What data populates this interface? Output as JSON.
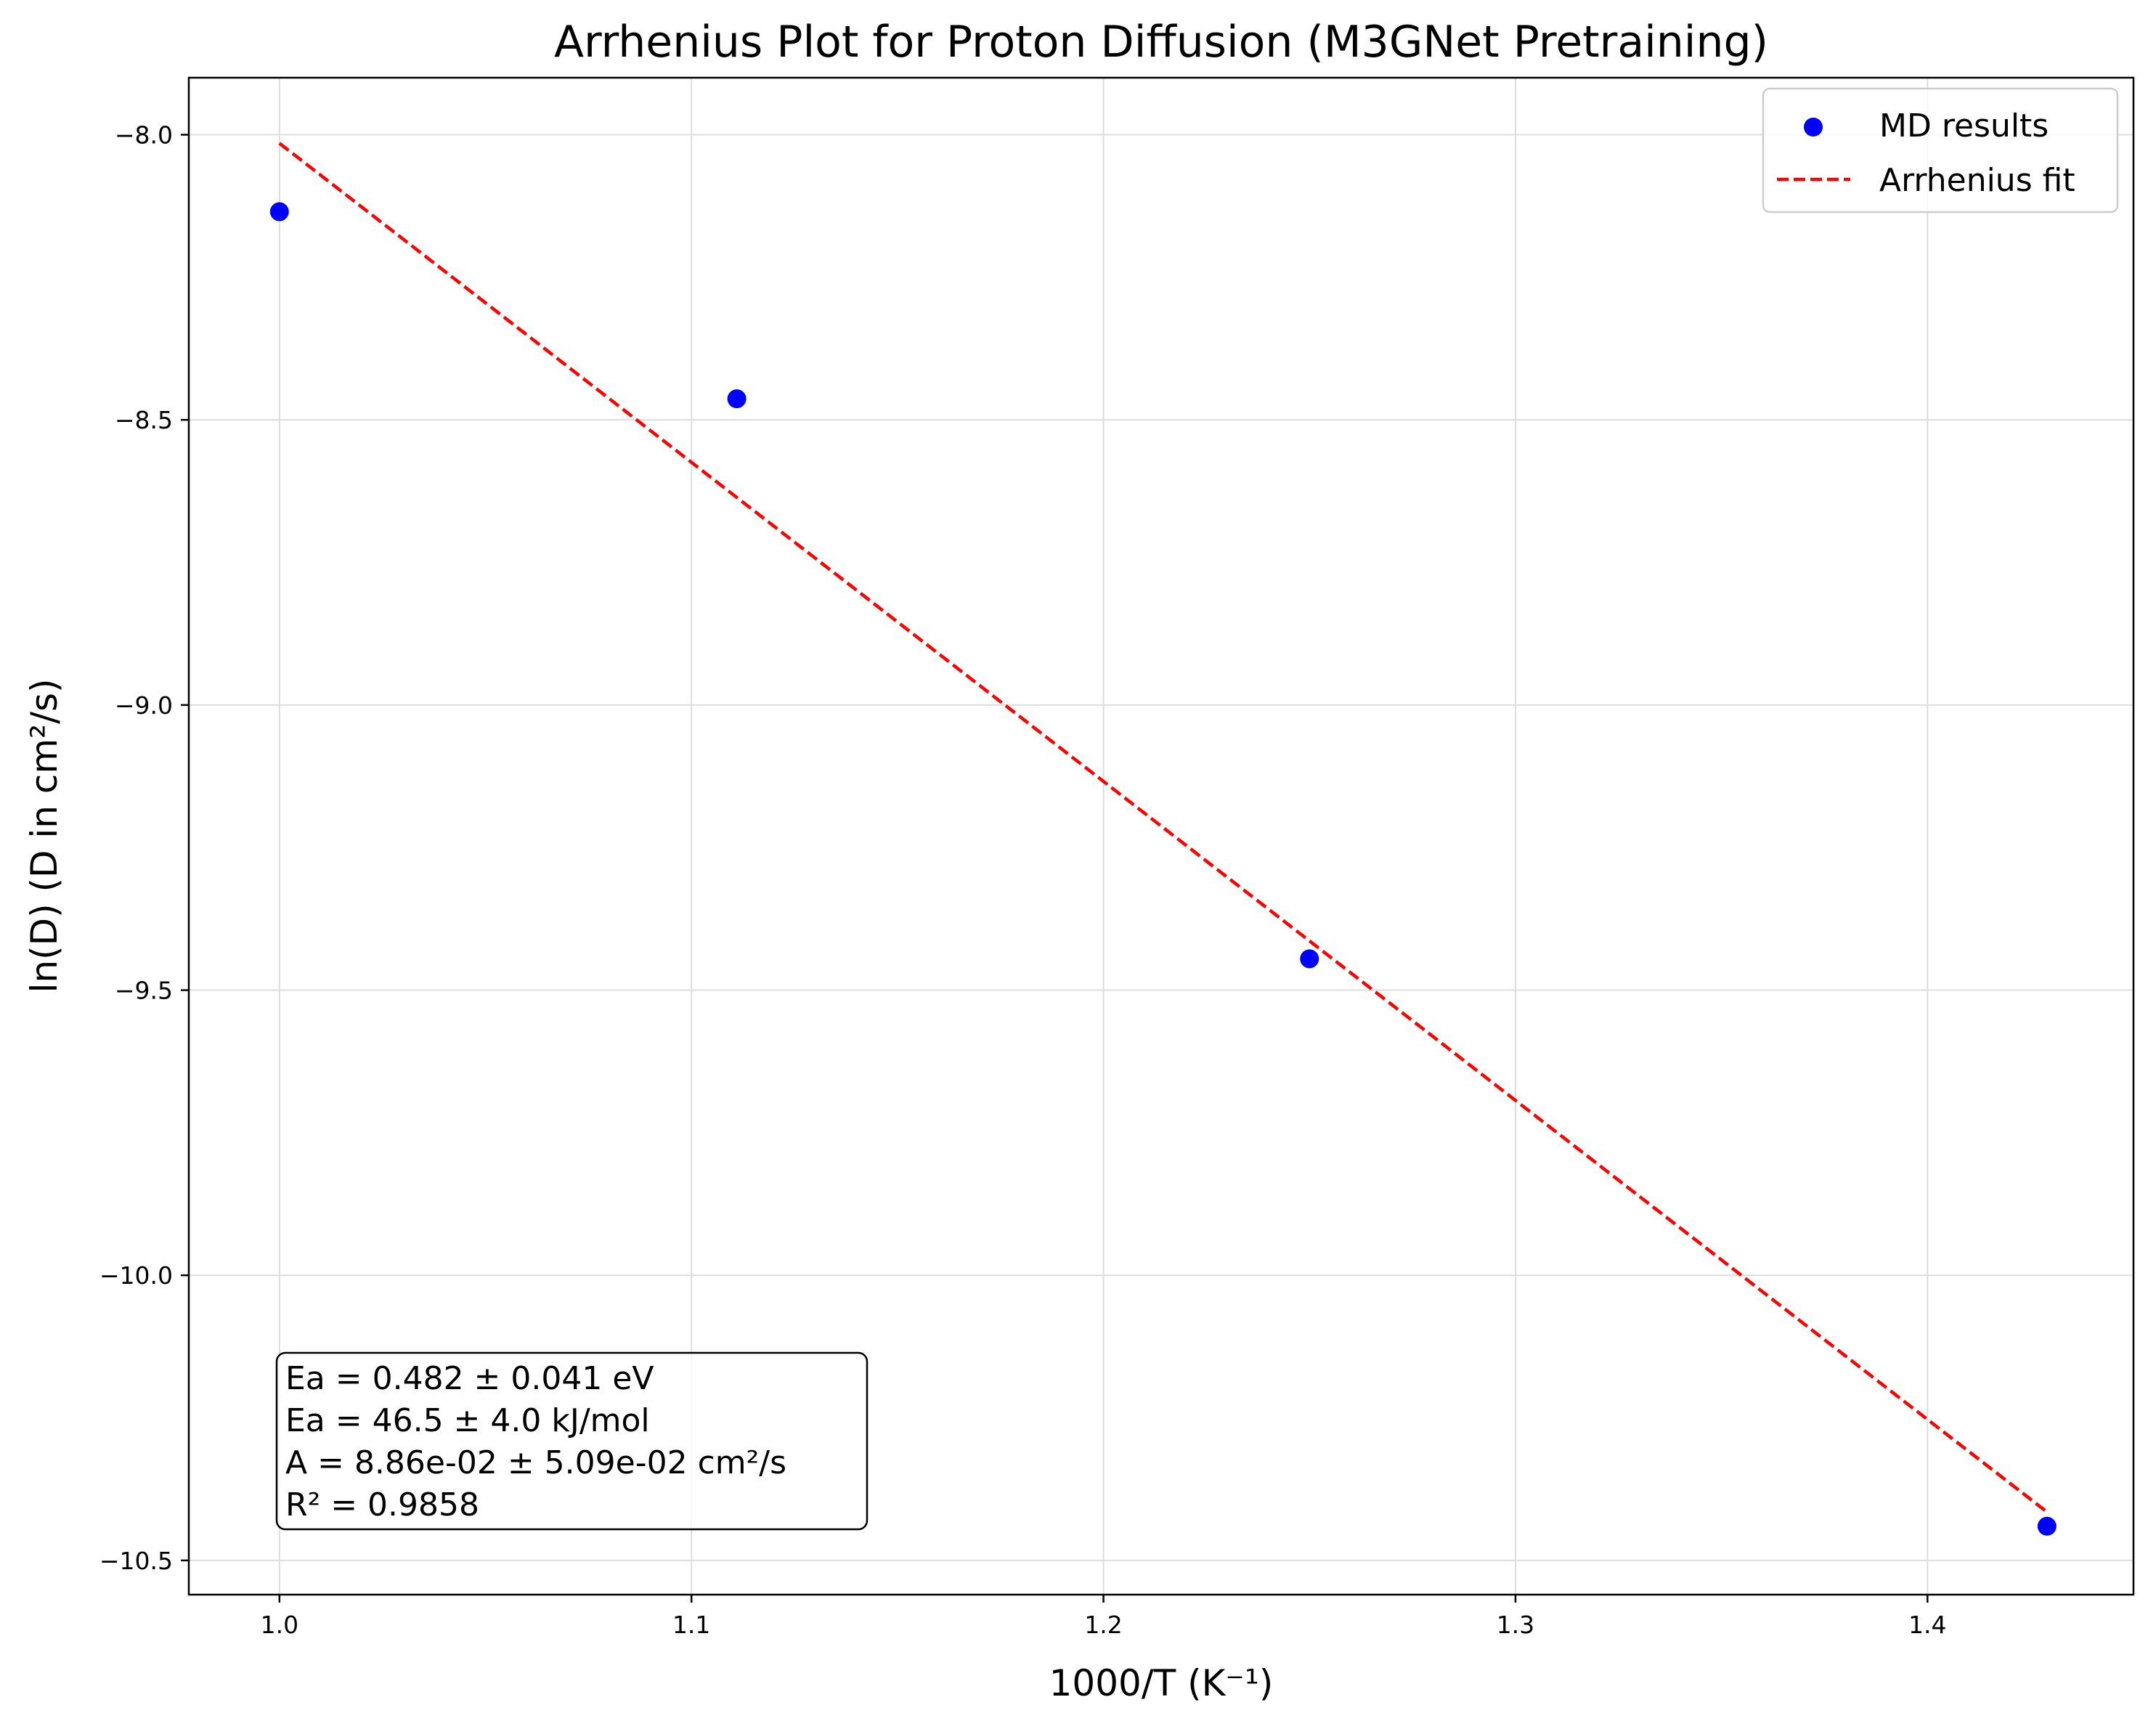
{
  "chart_data": {
    "type": "scatter",
    "title": "Arrhenius Plot for Proton Diffusion (M3GNet Pretraining)",
    "xlabel": "1000/T (K⁻¹)",
    "ylabel": "ln(D) (D in cm²/s)",
    "xlim": [
      0.978,
      1.45
    ],
    "ylim": [
      -10.56,
      -7.9
    ],
    "xticks": [
      1.0,
      1.1,
      1.2,
      1.3,
      1.4
    ],
    "xtick_labels": [
      "1.0",
      "1.1",
      "1.2",
      "1.3",
      "1.4"
    ],
    "yticks": [
      -8.0,
      -8.5,
      -9.0,
      -9.5,
      -10.0,
      -10.5
    ],
    "ytick_labels": [
      "−8.0",
      "−8.5",
      "−9.0",
      "−9.5",
      "−10.0",
      "−10.5"
    ],
    "grid": true,
    "legend_position": "top-right",
    "series": [
      {
        "name": "MD results",
        "kind": "scatter",
        "color": "#0000ff",
        "x": [
          1.0,
          1.111,
          1.25,
          1.429
        ],
        "y": [
          -8.135,
          -8.463,
          -9.445,
          -10.44
        ]
      },
      {
        "name": "Arrhenius fit",
        "kind": "line",
        "style": "dashed",
        "color": "#ff0000",
        "x": [
          1.0,
          1.429
        ],
        "y": [
          -8.015,
          -10.415
        ]
      }
    ],
    "annotation": {
      "position": "bottom-left",
      "lines": [
        "Ea = 0.482 ± 0.041 eV",
        "Ea = 46.5 ± 4.0 kJ/mol",
        "A = 8.86e-02 ± 5.09e-02 cm²/s",
        "R² = 0.9858"
      ]
    }
  }
}
